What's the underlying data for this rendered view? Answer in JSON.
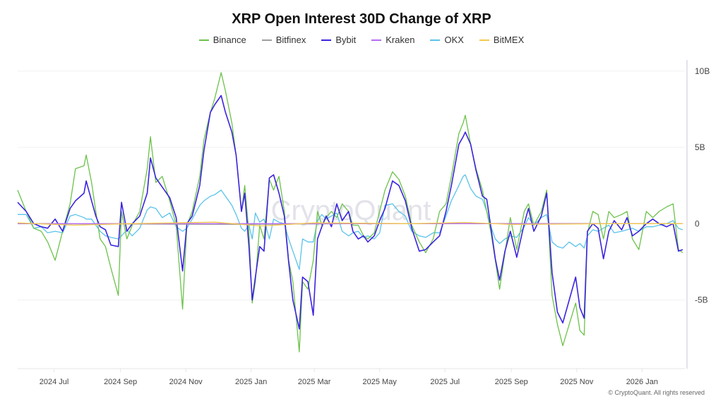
{
  "chart_data": {
    "type": "line",
    "title": "XRP Open Interest 30D Change of XRP",
    "watermark": "CryptoQuant",
    "copyright": "© CryptoQuant. All rights reserved",
    "xlabel": "",
    "ylabel": "",
    "xlim": [
      "2024-05-28",
      "2026-02-10"
    ],
    "ylim": [
      -9.5,
      10.5
    ],
    "y_axis_position": "right",
    "grid": "horizontal",
    "legend_position": "top",
    "xticks": [
      {
        "date": "2024-07-01",
        "label": "2024 Jul"
      },
      {
        "date": "2024-09-01",
        "label": "2024 Sep"
      },
      {
        "date": "2024-11-01",
        "label": "2024 Nov"
      },
      {
        "date": "2025-01-01",
        "label": "2025 Jan"
      },
      {
        "date": "2025-03-01",
        "label": "2025 Mar"
      },
      {
        "date": "2025-05-01",
        "label": "2025 May"
      },
      {
        "date": "2025-07-01",
        "label": "2025 Jul"
      },
      {
        "date": "2025-09-01",
        "label": "2025 Sep"
      },
      {
        "date": "2025-11-01",
        "label": "2025 Nov"
      },
      {
        "date": "2026-01-01",
        "label": "2026 Jan"
      }
    ],
    "yticks": [
      {
        "value": 10,
        "label": "10B"
      },
      {
        "value": 5,
        "label": "5B"
      },
      {
        "value": 0,
        "label": "0"
      },
      {
        "value": -5,
        "label": "-5B"
      }
    ],
    "x": [
      "2024-05-28",
      "2024-06-05",
      "2024-06-12",
      "2024-06-19",
      "2024-06-25",
      "2024-07-02",
      "2024-07-09",
      "2024-07-16",
      "2024-07-21",
      "2024-07-29",
      "2024-07-31",
      "2024-08-05",
      "2024-08-09",
      "2024-08-13",
      "2024-08-18",
      "2024-08-23",
      "2024-08-30",
      "2024-09-02",
      "2024-09-07",
      "2024-09-12",
      "2024-09-19",
      "2024-09-26",
      "2024-09-29",
      "2024-10-04",
      "2024-10-10",
      "2024-10-17",
      "2024-10-23",
      "2024-10-29",
      "2024-11-02",
      "2024-11-07",
      "2024-11-14",
      "2024-11-18",
      "2024-11-24",
      "2024-11-28",
      "2024-12-04",
      "2024-12-08",
      "2024-12-14",
      "2024-12-18",
      "2024-12-23",
      "2024-12-26",
      "2024-12-30",
      "2025-01-02",
      "2025-01-05",
      "2025-01-09",
      "2025-01-13",
      "2025-01-18",
      "2025-01-22",
      "2025-01-27",
      "2025-02-01",
      "2025-02-05",
      "2025-02-09",
      "2025-02-15",
      "2025-02-18",
      "2025-02-23",
      "2025-02-28",
      "2025-03-04",
      "2025-03-08",
      "2025-03-12",
      "2025-03-17",
      "2025-03-22",
      "2025-03-27",
      "2025-04-02",
      "2025-04-06",
      "2025-04-11",
      "2025-04-16",
      "2025-04-20",
      "2025-04-26",
      "2025-05-01",
      "2025-05-06",
      "2025-05-13",
      "2025-05-19",
      "2025-05-25",
      "2025-05-31",
      "2025-06-07",
      "2025-06-13",
      "2025-06-20",
      "2025-06-26",
      "2025-07-02",
      "2025-07-07",
      "2025-07-14",
      "2025-07-18",
      "2025-07-20",
      "2025-07-25",
      "2025-07-30",
      "2025-08-05",
      "2025-08-09",
      "2025-08-13",
      "2025-08-17",
      "2025-08-21",
      "2025-08-26",
      "2025-08-31",
      "2025-09-06",
      "2025-09-13",
      "2025-09-17",
      "2025-09-22",
      "2025-09-29",
      "2025-10-04",
      "2025-10-09",
      "2025-10-14",
      "2025-10-19",
      "2025-10-25",
      "2025-10-31",
      "2025-11-04",
      "2025-11-08",
      "2025-11-11",
      "2025-11-16",
      "2025-11-21",
      "2025-11-26",
      "2025-12-01",
      "2025-12-06",
      "2025-12-13",
      "2025-12-18",
      "2025-12-23",
      "2025-12-29",
      "2026-01-05",
      "2026-01-11",
      "2026-01-17",
      "2026-01-24",
      "2026-01-30",
      "2026-02-04",
      "2026-02-08"
    ],
    "series": [
      {
        "name": "Binance",
        "color": "#6cc24a",
        "values": [
          2.2,
          0.8,
          -0.3,
          -0.5,
          -1.2,
          -2.4,
          -0.5,
          1.3,
          3.6,
          3.8,
          4.5,
          2.7,
          0.8,
          -1.0,
          -1.5,
          -2.9,
          -4.7,
          0.8,
          -1.0,
          -0.1,
          0.8,
          3.6,
          5.7,
          2.7,
          3.1,
          1.5,
          -0.1,
          -5.6,
          -0.1,
          0.8,
          3.1,
          5.5,
          7.3,
          8.2,
          9.9,
          8.7,
          6.6,
          4.5,
          0.8,
          2.5,
          -0.6,
          -5.2,
          -3.8,
          -0.1,
          -1.0,
          2.9,
          2.2,
          3.1,
          0.8,
          -2.4,
          -3.8,
          -8.4,
          -3.8,
          -4.3,
          -2.4,
          0.8,
          -0.1,
          0.4,
          0.8,
          0.4,
          1.3,
          0.8,
          -0.1,
          -0.1,
          -0.8,
          -1.0,
          -0.6,
          0.8,
          2.2,
          3.4,
          2.9,
          1.8,
          -0.1,
          -1.2,
          -1.9,
          -1.0,
          0.8,
          1.3,
          3.1,
          5.9,
          6.6,
          7.1,
          5.2,
          3.6,
          2.2,
          0.8,
          -0.6,
          -2.4,
          -4.3,
          -1.9,
          0.4,
          -1.7,
          0.8,
          1.3,
          -0.1,
          0.8,
          2.2,
          -4.7,
          -6.6,
          -8.0,
          -6.6,
          -5.2,
          -7.0,
          -7.3,
          -0.6,
          0.8,
          0.6,
          -1.0,
          0.8,
          0.4,
          0.6,
          0.8,
          -1.0,
          -1.7,
          0.8,
          0.4,
          0.8,
          1.1,
          1.3,
          -1.7,
          -1.9
        ]
      },
      {
        "name": "Bitfinex",
        "color": "#9e9e9e",
        "x": [
          "2024-05-28",
          "2024-12-20",
          "2025-04-01",
          "2026-02-08"
        ],
        "values": [
          0.0,
          -0.05,
          0.0,
          0.0
        ]
      },
      {
        "name": "Bybit",
        "color": "#3b24e0",
        "values": [
          1.4,
          0.8,
          0.0,
          -0.2,
          -0.3,
          0.3,
          -0.5,
          1.0,
          1.5,
          2.0,
          2.8,
          1.5,
          0.5,
          -0.2,
          -0.4,
          -1.4,
          -1.5,
          1.4,
          -0.5,
          0.0,
          0.5,
          2.0,
          4.3,
          3.0,
          2.4,
          1.7,
          0.4,
          -3.1,
          0.0,
          0.5,
          2.5,
          4.8,
          7.3,
          7.8,
          8.4,
          7.3,
          6.0,
          4.5,
          0.8,
          2.0,
          -1.5,
          -5.0,
          -3.5,
          -1.5,
          -1.8,
          3.0,
          3.2,
          2.0,
          0.5,
          -2.5,
          -5.0,
          -6.9,
          -3.5,
          -3.8,
          -6.0,
          -1.0,
          -0.2,
          0.5,
          -0.2,
          1.3,
          0.2,
          0.8,
          -0.5,
          -1.0,
          -0.8,
          -1.2,
          -0.8,
          0.2,
          1.0,
          2.8,
          2.5,
          1.5,
          -0.3,
          -1.8,
          -1.7,
          -1.2,
          -0.8,
          0.8,
          2.5,
          5.2,
          5.7,
          6.0,
          5.2,
          3.5,
          1.8,
          1.6,
          -0.3,
          -2.3,
          -3.7,
          -1.8,
          -0.5,
          -2.2,
          0.0,
          1.0,
          -0.5,
          0.5,
          2.0,
          -3.2,
          -5.8,
          -6.5,
          -5.0,
          -3.5,
          -5.5,
          -6.2,
          -0.5,
          0.0,
          -0.3,
          -2.3,
          -0.5,
          0.2,
          -0.4,
          0.4,
          -0.8,
          -0.5,
          0.0,
          0.3,
          0.0,
          -0.2,
          0.0,
          -1.8,
          -1.7
        ]
      },
      {
        "name": "Kraken",
        "color": "#b86cf0",
        "x": [
          "2024-05-28",
          "2024-10-01",
          "2025-03-01",
          "2025-08-01",
          "2026-02-08"
        ],
        "values": [
          0.0,
          0.0,
          0.0,
          0.0,
          0.0
        ]
      },
      {
        "name": "OKX",
        "color": "#5bc3ea",
        "values": [
          0.6,
          0.6,
          -0.3,
          -0.2,
          -0.6,
          -0.5,
          -0.6,
          0.5,
          0.6,
          0.4,
          0.3,
          0.3,
          -0.1,
          -0.5,
          -0.8,
          -0.9,
          -1.0,
          -0.8,
          -0.4,
          -0.8,
          -0.3,
          0.9,
          1.1,
          1.0,
          0.4,
          0.7,
          -0.2,
          -0.5,
          -0.3,
          0.3,
          1.2,
          1.5,
          1.8,
          1.9,
          2.2,
          1.8,
          1.2,
          0.6,
          -0.3,
          -0.5,
          -0.1,
          -1.0,
          0.7,
          0.1,
          0.3,
          -1.0,
          0.3,
          0.1,
          0.0,
          -1.0,
          -1.8,
          -3.0,
          -1.0,
          -1.2,
          -1.2,
          0.2,
          0.6,
          0.3,
          0.5,
          0.7,
          -0.5,
          -0.8,
          -0.6,
          -0.5,
          -0.9,
          -0.8,
          -1.0,
          -0.6,
          1.2,
          1.3,
          0.8,
          0.5,
          -0.5,
          -0.8,
          -0.9,
          -0.6,
          -0.6,
          0.5,
          1.5,
          2.5,
          3.1,
          3.2,
          2.3,
          1.8,
          1.6,
          0.8,
          -0.2,
          -1.0,
          -1.3,
          -1.0,
          -0.8,
          -0.9,
          -0.2,
          0.4,
          -0.1,
          0.4,
          0.6,
          -1.2,
          -1.5,
          -1.6,
          -1.2,
          -1.5,
          -1.3,
          -1.6,
          -0.8,
          -0.4,
          -0.5,
          -0.3,
          -0.1,
          -0.6,
          -0.5,
          -0.4,
          -0.3,
          -0.5,
          -0.2,
          -0.2,
          -0.1,
          0.0,
          0.2,
          -0.3,
          -0.4
        ]
      },
      {
        "name": "BitMEX",
        "color": "#f2c94c",
        "x": [
          "2024-05-28",
          "2024-07-20",
          "2024-09-10",
          "2024-11-28",
          "2025-01-10",
          "2025-03-01",
          "2025-06-01",
          "2025-07-20",
          "2025-09-01",
          "2025-12-01",
          "2026-02-08"
        ],
        "values": [
          0.05,
          -0.1,
          0.0,
          0.1,
          -0.15,
          0.05,
          0.0,
          0.08,
          -0.05,
          0.0,
          0.0
        ]
      }
    ]
  }
}
